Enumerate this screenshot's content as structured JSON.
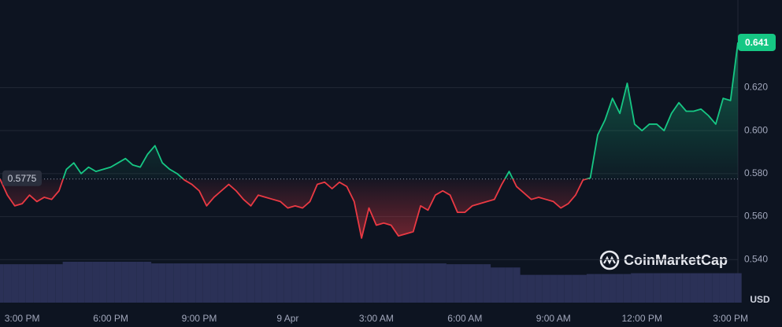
{
  "chart_data": {
    "type": "line",
    "categories": [
      null,
      null,
      null,
      "3:00 PM",
      null,
      null,
      null,
      null,
      null,
      null,
      null,
      null,
      null,
      null,
      null,
      "6:00 PM",
      null,
      null,
      null,
      null,
      null,
      null,
      null,
      null,
      null,
      null,
      null,
      "9:00 PM",
      null,
      null,
      null,
      null,
      null,
      null,
      null,
      null,
      null,
      null,
      null,
      "9 Apr",
      null,
      null,
      null,
      null,
      null,
      null,
      null,
      null,
      null,
      null,
      null,
      "3:00 AM",
      null,
      null,
      null,
      null,
      null,
      null,
      null,
      null,
      null,
      null,
      null,
      "6:00 AM",
      null,
      null,
      null,
      null,
      null,
      null,
      null,
      null,
      null,
      null,
      null,
      "9:00 AM",
      null,
      null,
      null,
      null,
      null,
      null,
      null,
      null,
      null,
      null,
      null,
      "12:00 PM",
      null,
      null,
      null,
      null,
      null,
      null,
      null,
      null,
      null,
      null,
      null,
      "3:00 PM",
      null
    ],
    "values": [
      0.5775,
      0.57,
      0.565,
      0.566,
      0.57,
      0.567,
      0.569,
      0.568,
      0.572,
      0.582,
      0.585,
      0.58,
      0.583,
      0.581,
      0.582,
      0.583,
      0.585,
      0.587,
      0.584,
      0.583,
      0.589,
      0.593,
      0.585,
      0.582,
      0.58,
      0.577,
      0.575,
      0.572,
      0.565,
      0.569,
      0.572,
      0.575,
      0.572,
      0.568,
      0.565,
      0.57,
      0.569,
      0.568,
      0.567,
      0.564,
      0.565,
      0.564,
      0.567,
      0.575,
      0.576,
      0.573,
      0.576,
      0.574,
      0.567,
      0.55,
      0.564,
      0.556,
      0.557,
      0.556,
      0.551,
      0.552,
      0.553,
      0.565,
      0.563,
      0.57,
      0.572,
      0.57,
      0.562,
      0.562,
      0.565,
      0.566,
      0.567,
      0.568,
      0.575,
      0.581,
      0.574,
      0.571,
      0.568,
      0.569,
      0.568,
      0.567,
      0.564,
      0.566,
      0.57,
      0.577,
      0.578,
      0.598,
      0.605,
      0.615,
      0.608,
      0.622,
      0.603,
      0.6,
      0.603,
      0.603,
      0.6,
      0.608,
      0.613,
      0.609,
      0.609,
      0.61,
      0.607,
      0.603,
      0.615,
      0.614,
      0.641
    ],
    "baseline": 0.5775,
    "up_color": "#16c784",
    "down_color": "#ea3943",
    "volume": {
      "color": "#2b3157",
      "values": [
        47,
        47,
        47,
        47,
        47,
        47,
        47,
        47,
        47,
        50,
        50,
        50,
        50,
        50,
        50,
        50,
        50,
        50,
        50,
        50,
        50,
        48,
        48,
        48,
        48,
        48,
        48,
        48,
        48,
        48,
        48,
        48,
        48,
        48,
        48,
        48,
        48,
        48,
        48,
        48,
        48,
        48,
        48,
        48,
        48,
        48,
        48,
        48,
        48,
        48,
        48,
        48,
        48,
        48,
        48,
        48,
        48,
        48,
        48,
        48,
        48,
        47,
        47,
        47,
        47,
        47,
        47,
        43,
        43,
        43,
        43,
        34,
        34,
        34,
        34,
        34,
        34,
        34,
        34,
        34,
        35,
        35,
        35,
        35,
        35,
        35,
        36,
        36,
        36,
        36,
        36,
        36,
        36,
        36,
        36,
        36,
        36,
        36,
        36,
        36,
        36
      ]
    },
    "ylim": [
      0.52,
      0.66
    ],
    "yticks": [
      {
        "value": 0.54,
        "label": "0.540"
      },
      {
        "value": 0.56,
        "label": "0.560"
      },
      {
        "value": 0.58,
        "label": "0.580"
      },
      {
        "value": 0.6,
        "label": "0.600"
      },
      {
        "value": 0.62,
        "label": "0.620"
      }
    ],
    "grid": true,
    "unit": "USD",
    "brand": "CoinMarketCap"
  }
}
